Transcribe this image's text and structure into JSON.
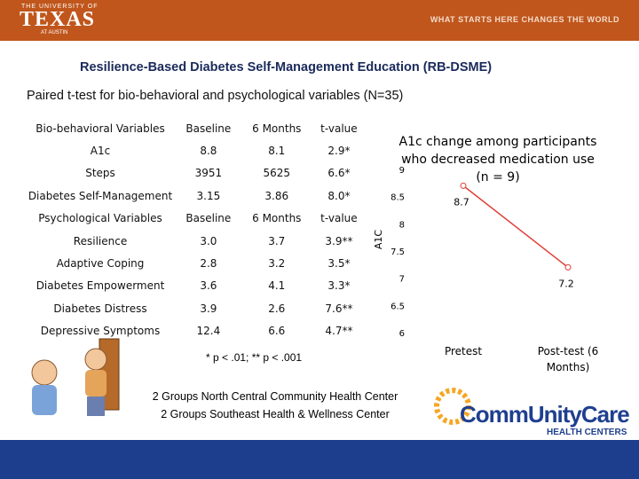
{
  "header": {
    "university_top": "THE UNIVERSITY OF",
    "university_name": "TEXAS",
    "university_bottom": "AT AUSTIN",
    "slogan": "WHAT STARTS HERE CHANGES THE WORLD"
  },
  "title": "Resilience-Based Diabetes Self-Management Education (RB-DSME)",
  "subtitle": "Paired t-test for bio-behavioral and psychological variables (N=35)",
  "table": {
    "rows": [
      [
        "Bio-behavioral Variables",
        "Baseline",
        "6 Months",
        "t-value"
      ],
      [
        "A1c",
        "8.8",
        "8.1",
        "2.9*"
      ],
      [
        "Steps",
        "3951",
        "5625",
        "6.6*"
      ],
      [
        "Diabetes Self-Management",
        "3.15",
        "3.86",
        "8.0*"
      ],
      [
        "Psychological Variables",
        "Baseline",
        "6 Months",
        "t-value"
      ],
      [
        "Resilience",
        "3.0",
        "3.7",
        "3.9**"
      ],
      [
        "Adaptive Coping",
        "2.8",
        "3.2",
        "3.5*"
      ],
      [
        "Diabetes Empowerment",
        "3.6",
        "4.1",
        "3.3*"
      ],
      [
        "Diabetes Distress",
        "3.9",
        "2.6",
        "7.6**"
      ],
      [
        "Depressive Symptoms",
        "12.4",
        "6.6",
        "4.7**"
      ]
    ]
  },
  "footnote": "* p < .01; ** p < .001",
  "notes": [
    "2 Groups North Central Community Health Center",
    "2 Groups Southeast Health & Wellness Center"
  ],
  "logo": {
    "name": "CommUnityCare",
    "tagline": "HEALTH CENTERS"
  },
  "chart_data": {
    "type": "line",
    "title": "A1c change among participants who decreased medication use (n = 9)",
    "ylabel": "A1C",
    "categories": [
      "Pretest",
      "Post-test (6 Months)"
    ],
    "values": [
      8.7,
      7.2
    ],
    "color": "#e0403a",
    "ylim": [
      6,
      9
    ],
    "yticks": [
      6,
      6.5,
      7,
      7.5,
      8,
      8.5,
      9
    ]
  }
}
